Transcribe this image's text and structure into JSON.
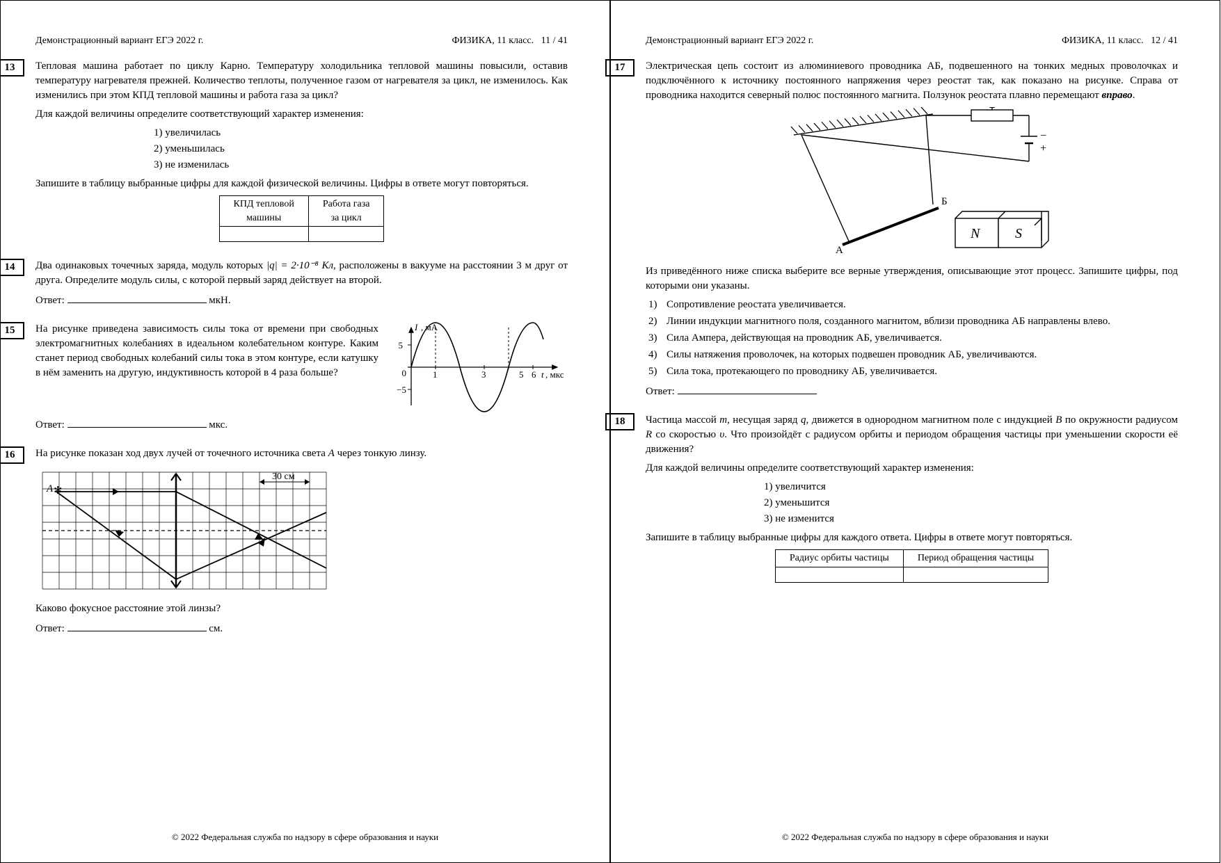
{
  "header": {
    "left": "Демонстрационный вариант ЕГЭ 2022 г.",
    "right_prefix": "ФИЗИКА, 11 класс.",
    "page_left": "11 / 41",
    "page_right": "12 / 41"
  },
  "footer": "© 2022 Федеральная служба по надзору в сфере образования и науки",
  "q13": {
    "num": "13",
    "text": "Тепловая машина работает по циклу Карно. Температуру холодильника тепловой машины повысили, оставив температуру нагревателя прежней. Количество теплоты, полученное газом от нагревателя за цикл, не изменилось. Как изменились при этом КПД тепловой машины и работа газа за цикл?",
    "instr": "Для каждой величины определите соответствующий характер изменения:",
    "opts": [
      "1)  увеличилась",
      "2)  уменьшилась",
      "3)  не изменилась"
    ],
    "instr2": "Запишите в таблицу выбранные цифры для каждой физической величины. Цифры в ответе могут повторяться.",
    "th1a": "КПД тепловой",
    "th1b": "машины",
    "th2a": "Работа газа",
    "th2b": "за цикл"
  },
  "q14": {
    "num": "14",
    "text_a": "Два одинаковых точечных заряда, модуль которых ",
    "formula": "|q| = 2·10⁻⁸ Кл",
    "text_b": ", расположены в вакууме на расстоянии 3 м друг от друга. Определите модуль силы, с которой первый заряд действует на второй.",
    "ans_label": "Ответ:",
    "unit": "мкН."
  },
  "q15": {
    "num": "15",
    "text": "На рисунке приведена зависимость силы тока от времени при свободных электромагнитных колебаниях в идеальном колебательном контуре. Каким станет период свободных колебаний силы тока в этом контуре, если катушку в нём заменить на другую, индуктивность которой в 4 раза больше?",
    "ans_label": "Ответ:",
    "unit": "мкс.",
    "chart": {
      "ylabel": "I, мА",
      "xlabel": "t, мкс",
      "xticks": [
        "1",
        "3",
        "5",
        "6"
      ],
      "yticks": [
        "5",
        "0",
        "−5"
      ],
      "amplitude": 5,
      "period": 4,
      "colors": {
        "axis": "#000",
        "curve": "#000",
        "dash": "#000"
      }
    }
  },
  "q16": {
    "num": "16",
    "text_a": "На рисунке показан ход двух лучей от точечного источника света ",
    "A": "A",
    "text_b": " через тонкую линзу.",
    "question2": "Каково фокусное расстояние этой линзы?",
    "ans_label": "Ответ:",
    "unit": "см.",
    "scale_label": "30 см",
    "diagram": {
      "cols": 16,
      "rows": 7,
      "cell": 24,
      "lens_x": 8,
      "colors": {
        "grid": "#000",
        "ray": "#000"
      }
    }
  },
  "q17": {
    "num": "17",
    "text_a": "Электрическая цепь состоит из алюминиевого проводника АБ, подвешенного на тонких медных проволочках и подключённого к источнику постоянного напряжения через реостат так, как показано на рисунке. Справа от проводника находится северный полюс постоянного магнита. Ползунок реостата плавно перемещают ",
    "em": "вправо",
    "dot": ".",
    "labels": {
      "A": "А",
      "B": "Б",
      "N": "N",
      "S": "S",
      "plus": "+",
      "minus": "−"
    },
    "instr": "Из приведённого ниже списка выберите все верные утверждения, описывающие этот процесс. Запишите цифры, под которыми они указаны.",
    "opts": [
      "Сопротивление реостата увеличивается.",
      "Линии индукции магнитного поля, созданного магнитом, вблизи проводника АБ направлены влево.",
      "Сила Ампера, действующая на проводник АБ, увеличивается.",
      "Силы натяжения проволочек, на которых подвешен проводник АБ, увеличиваются.",
      "Сила тока, протекающего по проводнику АБ, увеличивается."
    ],
    "ans_label": "Ответ:"
  },
  "q18": {
    "num": "18",
    "text": "Частица массой m, несущая заряд q, движется в однородном магнитном поле с индукцией B по окружности радиусом R со скоростью υ. Что произойдёт с радиусом орбиты и периодом обращения частицы при уменьшении скорости её движения?",
    "instr": "Для каждой величины определите соответствующий характер изменения:",
    "opts": [
      "1)  увеличится",
      "2)  уменьшится",
      "3)  не изменится"
    ],
    "instr2": "Запишите в таблицу выбранные цифры для каждого ответа. Цифры в ответе могут повторяться.",
    "th1": "Радиус орбиты частицы",
    "th2": "Период обращения частицы"
  }
}
